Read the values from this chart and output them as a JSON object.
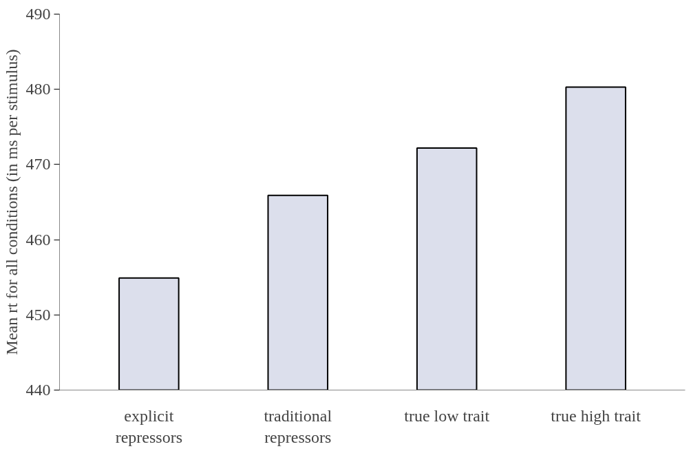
{
  "chart_data": {
    "type": "bar",
    "ylabel": "Mean rt for all conditions (in ms per stimulus)",
    "categories": [
      "explicit\nrepressors",
      "traditional\nrepressors",
      "true low trait",
      "true high trait"
    ],
    "values": [
      454.9,
      465.9,
      472.2,
      480.3
    ],
    "color": "#dcdfec",
    "ylim": [
      440,
      490
    ],
    "yticks": [
      440,
      450,
      460,
      470,
      480,
      490
    ],
    "grid": false
  }
}
